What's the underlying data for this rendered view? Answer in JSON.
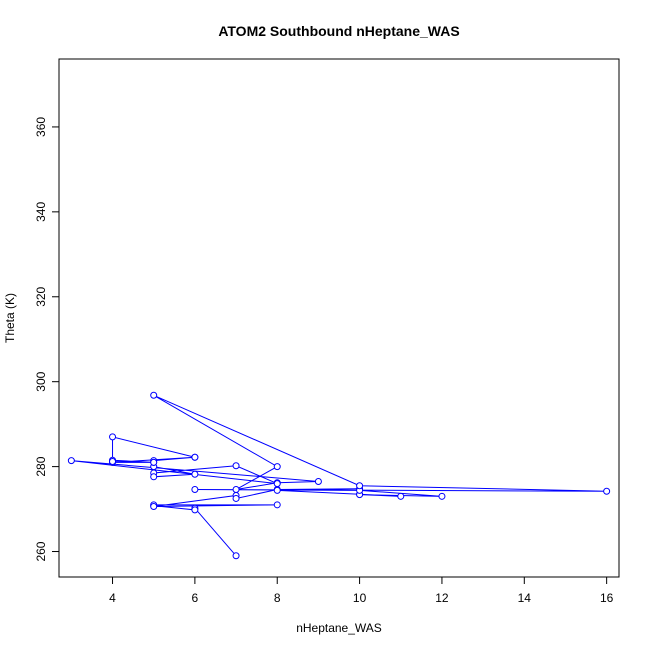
{
  "chart_data": {
    "type": "scatter",
    "title": "ATOM2 Southbound nHeptane_WAS",
    "xlabel": "nHeptane_WAS",
    "ylabel": "Theta (K)",
    "xlim": [
      2.7,
      16.3
    ],
    "ylim": [
      254,
      376
    ],
    "xticks": [
      4,
      6,
      8,
      10,
      12,
      14,
      16
    ],
    "yticks": [
      260,
      280,
      300,
      320,
      340,
      360
    ],
    "grid": false,
    "legend": "none",
    "series": [
      {
        "color": "#0000ff",
        "marker": "open-circle",
        "connected": true,
        "points": [
          [
            7,
            259.0
          ],
          [
            6,
            270.2
          ],
          [
            6,
            269.8
          ],
          [
            5,
            270.8
          ],
          [
            5,
            271.0
          ],
          [
            8,
            271.0
          ],
          [
            5,
            270.6
          ],
          [
            7,
            273.2
          ],
          [
            7,
            272.5
          ],
          [
            8,
            274.6
          ],
          [
            10,
            274.8
          ],
          [
            8,
            274.4
          ],
          [
            10,
            273.5
          ],
          [
            11,
            273.0
          ],
          [
            10,
            273.4
          ],
          [
            12,
            273.0
          ],
          [
            10,
            274.4
          ],
          [
            6,
            274.6
          ],
          [
            16,
            274.2
          ],
          [
            10,
            275.5
          ],
          [
            5,
            296.8
          ],
          [
            8,
            280.0
          ],
          [
            7,
            274.6
          ],
          [
            8,
            276.2
          ],
          [
            9,
            276.5
          ],
          [
            3,
            281.4
          ],
          [
            8,
            276.0
          ],
          [
            7,
            280.2
          ],
          [
            5,
            278.5
          ],
          [
            5,
            277.6
          ],
          [
            6,
            278.2
          ],
          [
            5,
            280.0
          ],
          [
            5,
            281.4
          ],
          [
            6,
            282.2
          ],
          [
            4,
            281.0
          ],
          [
            5,
            281.0
          ],
          [
            4,
            281.5
          ],
          [
            5,
            281.0
          ],
          [
            4,
            281.2
          ],
          [
            4,
            287.0
          ],
          [
            6,
            282.2
          ]
        ]
      }
    ]
  }
}
